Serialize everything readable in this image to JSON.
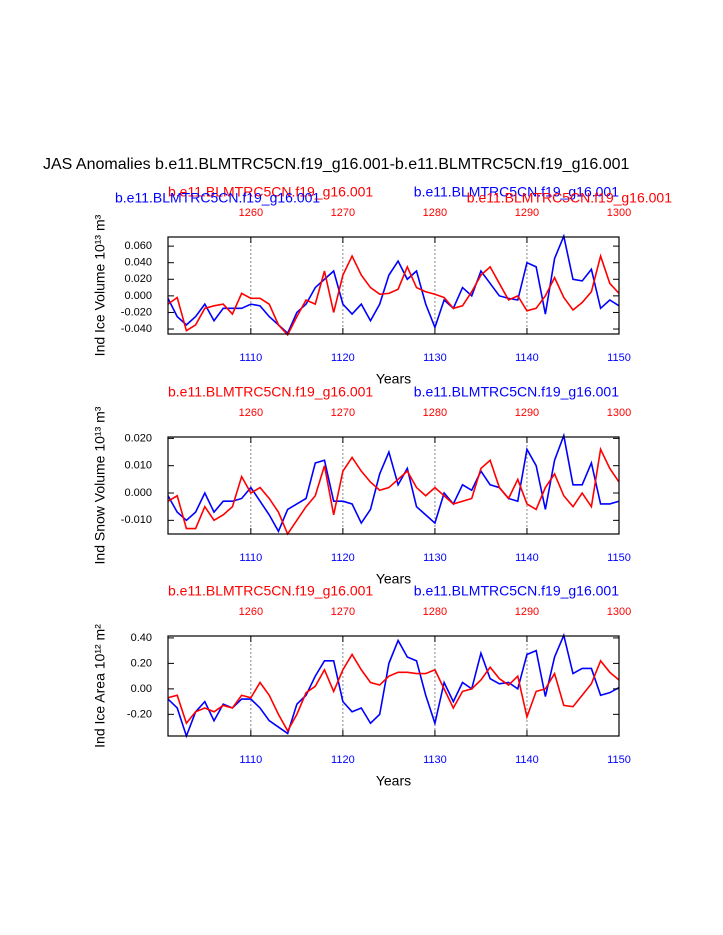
{
  "title": "JAS Anomalies b.e11.BLMTRC5CN.f19_g16.001-b.e11.BLMTRC5CN.f19_g16.001",
  "chart_data": [
    {
      "type": "line",
      "labels": [
        {
          "text": "b.e11.BLMTRC5CN.f19_g16.001",
          "color": "#ff0000"
        },
        {
          "text": "b.e11.BLMTRC5CN.f19_g16.001",
          "color": "#0000ff"
        },
        {
          "text": "b.e11.BLMTRC5CN.f19_g16.001",
          "color": "#0000ff"
        },
        {
          "text": "b.e11.BLMTRC5CN.f19_g16.001",
          "color": "#ff0000"
        }
      ],
      "ylabel": "Ind Ice Volume 10¹³ m³",
      "xlabel": "Years",
      "x": [
        1101,
        1102,
        1103,
        1104,
        1105,
        1106,
        1107,
        1108,
        1109,
        1110,
        1111,
        1112,
        1113,
        1114,
        1115,
        1116,
        1117,
        1118,
        1119,
        1120,
        1121,
        1122,
        1123,
        1124,
        1125,
        1126,
        1127,
        1128,
        1129,
        1130,
        1131,
        1132,
        1133,
        1134,
        1135,
        1136,
        1137,
        1138,
        1139,
        1140,
        1141,
        1142,
        1143,
        1144,
        1145,
        1146,
        1147,
        1148,
        1149,
        1150
      ],
      "x2": [
        1251,
        1252,
        1253,
        1254,
        1255,
        1256,
        1257,
        1258,
        1259,
        1260,
        1261,
        1262,
        1263,
        1264,
        1265,
        1266,
        1267,
        1268,
        1269,
        1270,
        1271,
        1272,
        1273,
        1274,
        1275,
        1276,
        1277,
        1278,
        1279,
        1280,
        1281,
        1282,
        1283,
        1284,
        1285,
        1286,
        1287,
        1288,
        1289,
        1290,
        1291,
        1292,
        1293,
        1294,
        1295,
        1296,
        1297,
        1298,
        1299,
        1300
      ],
      "xlim": [
        1101,
        1150
      ],
      "x2lim": [
        1251,
        1300
      ],
      "xticks": [
        1110,
        1120,
        1130,
        1140,
        1150
      ],
      "x2ticks": [
        1260,
        1270,
        1280,
        1290,
        1300
      ],
      "ylim": [
        -0.046,
        0.071
      ],
      "yticks": [
        {
          "value": 0.06,
          "label": "0.060"
        },
        {
          "value": 0.04,
          "label": "0.040"
        },
        {
          "value": 0.02,
          "label": "0.020"
        },
        {
          "value": 0,
          "label": "0.000"
        },
        {
          "value": -0.02,
          "label": "-0.020"
        },
        {
          "value": -0.04,
          "label": "-0.040"
        }
      ],
      "grid": true,
      "series": [
        {
          "color": "#0000ff",
          "values": [
            -0.003,
            -0.025,
            -0.035,
            -0.025,
            -0.01,
            -0.03,
            -0.015,
            -0.015,
            -0.015,
            -0.01,
            -0.012,
            -0.025,
            -0.035,
            -0.045,
            -0.02,
            -0.01,
            0.01,
            0.02,
            0.03,
            -0.01,
            -0.022,
            -0.01,
            -0.03,
            -0.01,
            0.025,
            0.042,
            0.02,
            0.03,
            -0.01,
            -0.038,
            -0.005,
            -0.015,
            0.01,
            0.0,
            0.03,
            0.015,
            0.0,
            -0.003,
            -0.005,
            0.04,
            0.035,
            -0.022,
            0.045,
            0.072,
            0.02,
            0.018,
            0.032,
            -0.015,
            -0.005,
            -0.012
          ]
        },
        {
          "color": "#ff0000",
          "axis": "x2",
          "values": [
            -0.01,
            -0.002,
            -0.042,
            -0.035,
            -0.015,
            -0.012,
            -0.01,
            -0.022,
            0.003,
            -0.003,
            -0.003,
            -0.01,
            -0.035,
            -0.047,
            -0.025,
            -0.005,
            -0.01,
            0.03,
            -0.02,
            0.025,
            0.048,
            0.025,
            0.01,
            0.002,
            0.003,
            0.008,
            0.035,
            0.01,
            0.005,
            0.002,
            -0.002,
            -0.015,
            -0.012,
            0.005,
            0.025,
            0.035,
            0.015,
            -0.005,
            0.0,
            -0.018,
            -0.015,
            0.0,
            0.022,
            -0.002,
            -0.017,
            -0.008,
            0.005,
            0.048,
            0.015,
            0.003
          ]
        }
      ]
    },
    {
      "type": "line",
      "labels": [
        {
          "text": "b.e11.BLMTRC5CN.f19_g16.001",
          "color": "#ff0000"
        },
        {
          "text": "b.e11.BLMTRC5CN.f19_g16.001",
          "color": "#0000ff"
        }
      ],
      "ylabel": "Ind Snow Volume 10¹³ m³",
      "xlabel": "Years",
      "x": [
        1101,
        1102,
        1103,
        1104,
        1105,
        1106,
        1107,
        1108,
        1109,
        1110,
        1111,
        1112,
        1113,
        1114,
        1115,
        1116,
        1117,
        1118,
        1119,
        1120,
        1121,
        1122,
        1123,
        1124,
        1125,
        1126,
        1127,
        1128,
        1129,
        1130,
        1131,
        1132,
        1133,
        1134,
        1135,
        1136,
        1137,
        1138,
        1139,
        1140,
        1141,
        1142,
        1143,
        1144,
        1145,
        1146,
        1147,
        1148,
        1149,
        1150
      ],
      "x2": [
        1251,
        1252,
        1253,
        1254,
        1255,
        1256,
        1257,
        1258,
        1259,
        1260,
        1261,
        1262,
        1263,
        1264,
        1265,
        1266,
        1267,
        1268,
        1269,
        1270,
        1271,
        1272,
        1273,
        1274,
        1275,
        1276,
        1277,
        1278,
        1279,
        1280,
        1281,
        1282,
        1283,
        1284,
        1285,
        1286,
        1287,
        1288,
        1289,
        1290,
        1291,
        1292,
        1293,
        1294,
        1295,
        1296,
        1297,
        1298,
        1299,
        1300
      ],
      "xlim": [
        1101,
        1150
      ],
      "x2lim": [
        1251,
        1300
      ],
      "xticks": [
        1110,
        1120,
        1130,
        1140,
        1150
      ],
      "x2ticks": [
        1260,
        1270,
        1280,
        1290,
        1300
      ],
      "ylim": [
        -0.015,
        0.0205
      ],
      "yticks": [
        {
          "value": 0.02,
          "label": "0.020"
        },
        {
          "value": 0.01,
          "label": "0.010"
        },
        {
          "value": 0,
          "label": "0.000"
        },
        {
          "value": -0.01,
          "label": "-0.010"
        }
      ],
      "grid": true,
      "series": [
        {
          "color": "#0000ff",
          "values": [
            -0.001,
            -0.007,
            -0.01,
            -0.007,
            0.0,
            -0.007,
            -0.003,
            -0.003,
            -0.002,
            0.002,
            -0.003,
            -0.008,
            -0.014,
            -0.006,
            -0.004,
            -0.002,
            0.011,
            0.012,
            -0.003,
            -0.003,
            -0.004,
            -0.011,
            -0.006,
            0.007,
            0.015,
            0.003,
            0.009,
            -0.005,
            -0.008,
            -0.011,
            0.0,
            -0.004,
            0.003,
            0.001,
            0.008,
            0.003,
            0.002,
            -0.002,
            -0.003,
            0.016,
            0.01,
            -0.006,
            0.012,
            0.021,
            0.003,
            0.003,
            0.011,
            -0.004,
            -0.004,
            -0.003
          ]
        },
        {
          "color": "#ff0000",
          "axis": "x2",
          "values": [
            -0.003,
            -0.001,
            -0.013,
            -0.013,
            -0.005,
            -0.01,
            -0.008,
            -0.005,
            0.006,
            0.0,
            0.002,
            -0.002,
            -0.007,
            -0.015,
            -0.01,
            -0.005,
            -0.001,
            0.01,
            -0.008,
            0.008,
            0.013,
            0.008,
            0.004,
            0.001,
            0.002,
            0.005,
            0.008,
            0.002,
            -0.001,
            0.002,
            -0.001,
            -0.004,
            -0.003,
            -0.002,
            0.009,
            0.012,
            0.002,
            -0.002,
            0.005,
            -0.004,
            -0.006,
            0.002,
            0.007,
            -0.001,
            -0.005,
            0.0,
            -0.005,
            0.016,
            0.009,
            0.004
          ]
        }
      ]
    },
    {
      "type": "line",
      "labels": [
        {
          "text": "b.e11.BLMTRC5CN.f19_g16.001",
          "color": "#ff0000"
        },
        {
          "text": "b.e11.BLMTRC5CN.f19_g16.001",
          "color": "#0000ff"
        }
      ],
      "ylabel": "Ind Ice Area 10¹² m²",
      "xlabel": "Years",
      "x": [
        1101,
        1102,
        1103,
        1104,
        1105,
        1106,
        1107,
        1108,
        1109,
        1110,
        1111,
        1112,
        1113,
        1114,
        1115,
        1116,
        1117,
        1118,
        1119,
        1120,
        1121,
        1122,
        1123,
        1124,
        1125,
        1126,
        1127,
        1128,
        1129,
        1130,
        1131,
        1132,
        1133,
        1134,
        1135,
        1136,
        1137,
        1138,
        1139,
        1140,
        1141,
        1142,
        1143,
        1144,
        1145,
        1146,
        1147,
        1148,
        1149,
        1150
      ],
      "x2": [
        1251,
        1252,
        1253,
        1254,
        1255,
        1256,
        1257,
        1258,
        1259,
        1260,
        1261,
        1262,
        1263,
        1264,
        1265,
        1266,
        1267,
        1268,
        1269,
        1270,
        1271,
        1272,
        1273,
        1274,
        1275,
        1276,
        1277,
        1278,
        1279,
        1280,
        1281,
        1282,
        1283,
        1284,
        1285,
        1286,
        1287,
        1288,
        1289,
        1290,
        1291,
        1292,
        1293,
        1294,
        1295,
        1296,
        1297,
        1298,
        1299,
        1300
      ],
      "xlim": [
        1101,
        1150
      ],
      "x2lim": [
        1251,
        1300
      ],
      "xticks": [
        1110,
        1120,
        1130,
        1140,
        1150
      ],
      "x2ticks": [
        1260,
        1270,
        1280,
        1290,
        1300
      ],
      "ylim": [
        -0.37,
        0.415
      ],
      "yticks": [
        {
          "value": 0.4,
          "label": "0.40"
        },
        {
          "value": 0.2,
          "label": "0.20"
        },
        {
          "value": 0,
          "label": "0.00"
        },
        {
          "value": -0.2,
          "label": "-0.20"
        }
      ],
      "grid": true,
      "series": [
        {
          "color": "#0000ff",
          "values": [
            -0.08,
            -0.15,
            -0.37,
            -0.18,
            -0.1,
            -0.25,
            -0.12,
            -0.15,
            -0.08,
            -0.08,
            -0.15,
            -0.25,
            -0.3,
            -0.35,
            -0.12,
            -0.05,
            0.1,
            0.22,
            0.22,
            -0.1,
            -0.18,
            -0.15,
            -0.27,
            -0.2,
            0.2,
            0.38,
            0.25,
            0.22,
            -0.05,
            -0.27,
            0.05,
            -0.1,
            0.05,
            0.0,
            0.28,
            0.08,
            0.04,
            0.05,
            0.0,
            0.27,
            0.3,
            -0.06,
            0.25,
            0.42,
            0.12,
            0.16,
            0.16,
            -0.05,
            -0.03,
            0.01
          ]
        },
        {
          "color": "#ff0000",
          "axis": "x2",
          "values": [
            -0.07,
            -0.05,
            -0.27,
            -0.18,
            -0.15,
            -0.18,
            -0.13,
            -0.15,
            -0.05,
            -0.07,
            0.05,
            -0.05,
            -0.2,
            -0.33,
            -0.2,
            -0.03,
            0.02,
            0.15,
            -0.02,
            0.15,
            0.27,
            0.15,
            0.05,
            0.03,
            0.1,
            0.13,
            0.13,
            0.12,
            0.12,
            0.15,
            0.0,
            -0.15,
            -0.02,
            0.0,
            0.07,
            0.17,
            0.08,
            0.03,
            0.1,
            -0.22,
            -0.02,
            0.0,
            0.12,
            -0.13,
            -0.14,
            -0.05,
            0.04,
            0.22,
            0.13,
            0.07
          ]
        }
      ]
    }
  ]
}
